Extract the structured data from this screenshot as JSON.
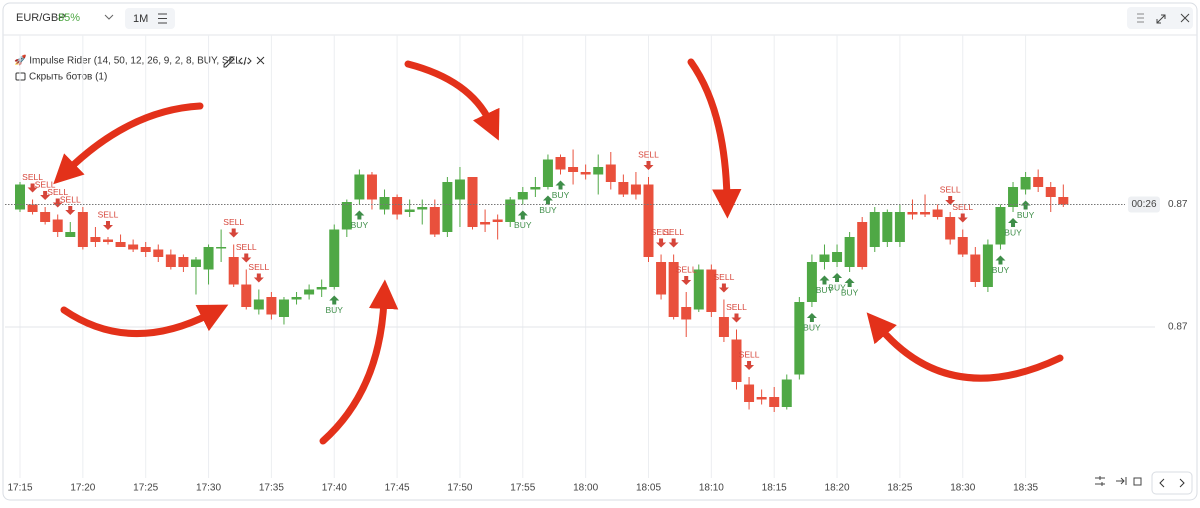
{
  "header": {
    "symbol": "EUR/GBP",
    "payout": "85%",
    "timeframe": "1M"
  },
  "bot": {
    "label": "🚀 Impulse Rider (14, 50, 12, 26, 9, 2, 8, BUY, SEL...",
    "hide": "Скрыть ботов (1)"
  },
  "chart_data": {
    "type": "candlestick",
    "categories": [
      "17:15",
      null,
      null,
      null,
      null,
      "17:20",
      null,
      null,
      null,
      null,
      "17:25",
      null,
      null,
      null,
      null,
      "17:30",
      null,
      null,
      null,
      null,
      "17:35",
      null,
      null,
      null,
      null,
      "17:40",
      null,
      null,
      null,
      null,
      "17:45",
      null,
      null,
      null,
      null,
      "17:50",
      null,
      null,
      null,
      null,
      "17:55",
      null,
      null,
      null,
      null,
      "18:00",
      null,
      null,
      null,
      null,
      "18:05",
      null,
      null,
      null,
      null,
      "18:10",
      null,
      null,
      null,
      null,
      "18:15",
      null,
      null,
      null,
      null,
      "18:20",
      null,
      null,
      null,
      null,
      "18:25",
      null,
      null,
      null,
      null,
      "18:30",
      null,
      null,
      null,
      null,
      "18:35",
      null,
      null,
      null
    ],
    "open": [
      0.87447,
      0.87449,
      0.87446,
      0.87443,
      0.87436,
      0.87446,
      0.87436,
      0.87435,
      0.87434,
      0.87433,
      0.87432,
      0.87431,
      0.87429,
      0.87428,
      0.87424,
      0.87423,
      0.87432,
      0.87428,
      0.87417,
      0.87407,
      0.87412,
      0.87404,
      0.87411,
      0.87413,
      0.87415,
      0.87416,
      0.87439,
      0.87451,
      0.87461,
      0.87447,
      0.87452,
      0.87446,
      0.87447,
      0.87448,
      0.87438,
      0.87451,
      0.8746,
      0.87442,
      0.87443,
      0.87442,
      0.87451,
      0.87455,
      0.87456,
      0.87468,
      0.87464,
      0.87462,
      0.87461,
      0.87465,
      0.87458,
      0.87457,
      0.87457,
      0.87426,
      0.87426,
      0.87408,
      0.87407,
      0.87423,
      0.87404,
      0.87395,
      0.87377,
      0.87372,
      0.87372,
      0.87368,
      0.87381,
      0.8741,
      0.87426,
      0.87426,
      0.87424,
      0.87442,
      0.87432,
      0.87434,
      0.87434,
      0.87446,
      0.87446,
      0.87447,
      0.87444,
      0.87436,
      0.87429,
      0.87416,
      0.87433,
      0.87448,
      0.87455,
      0.8746,
      0.87456,
      0.87452
    ],
    "high": [
      0.87458,
      0.87451,
      0.87448,
      0.87445,
      0.87442,
      0.87448,
      0.8744,
      0.87436,
      0.87437,
      0.87435,
      0.87434,
      0.87433,
      0.87431,
      0.87429,
      0.87428,
      0.87433,
      0.87439,
      0.87433,
      0.87423,
      0.87415,
      0.87414,
      0.87412,
      0.87414,
      0.87417,
      0.87419,
      0.87441,
      0.87451,
      0.87463,
      0.87462,
      0.87455,
      0.87453,
      0.87451,
      0.87451,
      0.87451,
      0.8746,
      0.87464,
      0.8746,
      0.87447,
      0.87445,
      0.87452,
      0.87456,
      0.8746,
      0.87469,
      0.87469,
      0.87471,
      0.87465,
      0.87469,
      0.8747,
      0.87461,
      0.87462,
      0.8746,
      0.87429,
      0.87429,
      0.87414,
      0.87425,
      0.87425,
      0.87411,
      0.87399,
      0.8738,
      0.87375,
      0.87376,
      0.87381,
      0.87412,
      0.87429,
      0.87433,
      0.87433,
      0.87438,
      0.87444,
      0.87448,
      0.87447,
      0.87449,
      0.87451,
      0.87453,
      0.87449,
      0.87446,
      0.87439,
      0.87432,
      0.87435,
      0.87449,
      0.87458,
      0.87462,
      0.87463,
      0.87458,
      0.87457
    ],
    "low": [
      0.87446,
      0.87445,
      0.87441,
      0.87436,
      0.87436,
      0.87431,
      0.87432,
      0.87433,
      0.87432,
      0.8743,
      0.87428,
      0.87426,
      0.87423,
      0.87422,
      0.87413,
      0.87417,
      0.87426,
      0.87416,
      0.87407,
      0.87405,
      0.87403,
      0.87401,
      0.87409,
      0.87411,
      0.87412,
      0.87415,
      0.87436,
      0.87449,
      0.87447,
      0.87445,
      0.87443,
      0.87444,
      0.87441,
      0.87436,
      0.87436,
      0.8744,
      0.87439,
      0.87438,
      0.87435,
      0.8744,
      0.87449,
      0.87452,
      0.87455,
      0.87461,
      0.87457,
      0.87459,
      0.87453,
      0.87455,
      0.87452,
      0.87451,
      0.87426,
      0.87411,
      0.87403,
      0.87396,
      0.87406,
      0.87404,
      0.87394,
      0.87375,
      0.87367,
      0.87369,
      0.87366,
      0.87367,
      0.87379,
      0.87408,
      0.87423,
      0.87424,
      0.87422,
      0.87423,
      0.8743,
      0.87432,
      0.87432,
      0.87443,
      0.87444,
      0.87443,
      0.87433,
      0.87428,
      0.87416,
      0.87414,
      0.87431,
      0.87446,
      0.87453,
      0.87454,
      0.87446,
      0.87448
    ],
    "close": [
      0.87457,
      0.87446,
      0.87442,
      0.87438,
      0.87438,
      0.87432,
      0.87434,
      0.87434,
      0.87432,
      0.87431,
      0.8743,
      0.87428,
      0.87424,
      0.87424,
      0.87427,
      0.87432,
      0.87432,
      0.87417,
      0.87408,
      0.87411,
      0.87405,
      0.87411,
      0.87412,
      0.87415,
      0.87416,
      0.87439,
      0.8745,
      0.87461,
      0.87451,
      0.87452,
      0.87445,
      0.87447,
      0.87448,
      0.87437,
      0.87458,
      0.87459,
      0.8744,
      0.87441,
      0.87442,
      0.87451,
      0.87454,
      0.87456,
      0.87467,
      0.87463,
      0.87462,
      0.87461,
      0.87464,
      0.87458,
      0.87453,
      0.87453,
      0.87428,
      0.87413,
      0.87404,
      0.87403,
      0.87423,
      0.87406,
      0.87396,
      0.87378,
      0.8737,
      0.87371,
      0.87368,
      0.87379,
      0.8741,
      0.87426,
      0.87429,
      0.8743,
      0.87436,
      0.87424,
      0.87446,
      0.87446,
      0.87446,
      0.87445,
      0.87445,
      0.87444,
      0.87435,
      0.87429,
      0.87418,
      0.87433,
      0.87448,
      0.87456,
      0.8746,
      0.87456,
      0.87452,
      0.87449
    ],
    "up_color": "#4fa845",
    "down_color": "#e9503c",
    "ylim": [
      0.8734,
      0.8752
    ],
    "yticks": [
      {
        "value": 0.874,
        "label": "0.87"
      }
    ],
    "current_price": {
      "value": 0.87449,
      "label": "0.87",
      "timer": "00:26"
    },
    "sell_signals": {
      "label": "SELL",
      "candles": [
        1,
        2,
        3,
        4,
        7,
        17,
        18,
        19,
        50,
        51,
        52,
        53,
        56,
        57,
        58,
        74,
        75
      ]
    },
    "buy_signals": {
      "label": "BUY",
      "candles": [
        25,
        27,
        40,
        42,
        43,
        63,
        64,
        65,
        66,
        78,
        79,
        80
      ]
    },
    "grid": true
  }
}
